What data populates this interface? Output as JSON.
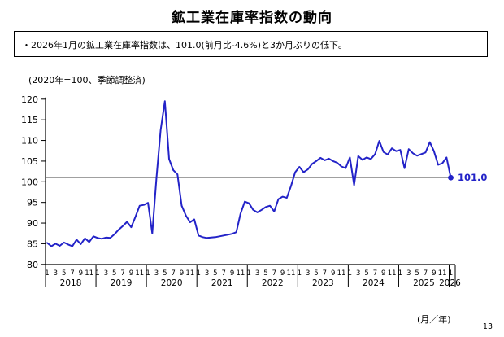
{
  "page": {
    "title": "鉱工業在庫率指数の動向",
    "page_number": "13"
  },
  "summary_box": {
    "text": "・2026年1月の鉱工業在庫率指数は、101.0(前月比-4.6%)と3か月ぶりの低下。"
  },
  "chart_data": {
    "type": "line",
    "title": "鉱工業在庫率指数の動向",
    "note": "(2020年=100、季節調整済)",
    "x_unit_label": "(月／年)",
    "ylim": [
      80,
      120
    ],
    "ytick_step": 5,
    "grid": "off",
    "legend": "none",
    "reference_line_value": 101.0,
    "latest_point_label": "101.0",
    "line_color": "#2323c8",
    "reference_line_color": "#808080",
    "axis_color": "#000000",
    "month_tick_labels": [
      "1",
      "3",
      "5",
      "7",
      "9",
      "11"
    ],
    "final_month_tick_label": "1",
    "years": [
      "2018",
      "2019",
      "2020",
      "2021",
      "2022",
      "2023",
      "2024",
      "2025",
      "2026"
    ],
    "series": [
      {
        "name": "鉱工業在庫率指数",
        "start": "2018-01",
        "end": "2026-01",
        "frequency": "monthly",
        "values": [
          85.2,
          84.4,
          85.0,
          84.5,
          85.3,
          84.8,
          84.4,
          86.0,
          84.9,
          86.3,
          85.4,
          86.8,
          86.4,
          86.2,
          86.5,
          86.4,
          87.3,
          88.4,
          89.3,
          90.3,
          89.0,
          91.5,
          94.2,
          94.4,
          94.9,
          87.5,
          101.0,
          112.5,
          119.5,
          105.5,
          102.8,
          101.8,
          94.2,
          91.8,
          90.2,
          90.9,
          87.0,
          86.6,
          86.4,
          86.5,
          86.6,
          86.8,
          87.0,
          87.2,
          87.4,
          87.8,
          92.3,
          95.2,
          94.8,
          93.2,
          92.6,
          93.2,
          93.9,
          94.2,
          92.8,
          95.8,
          96.4,
          96.1,
          99.0,
          102.3,
          103.6,
          102.3,
          103.0,
          104.3,
          105.0,
          105.8,
          105.2,
          105.6,
          105.0,
          104.6,
          103.7,
          103.3,
          105.9,
          99.2,
          106.2,
          105.3,
          105.9,
          105.5,
          106.7,
          109.9,
          107.2,
          106.6,
          108.1,
          107.4,
          107.7,
          103.3,
          107.9,
          106.9,
          106.3,
          106.7,
          107.1,
          109.6,
          107.4,
          104.1,
          104.5,
          105.9,
          101.0
        ]
      }
    ]
  }
}
